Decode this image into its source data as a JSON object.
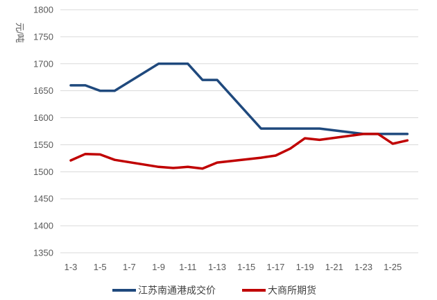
{
  "chart_data": {
    "type": "line",
    "title": "",
    "xlabel": "",
    "ylabel": "元/吨",
    "ylim": [
      1350,
      1800
    ],
    "yticks": [
      1350,
      1400,
      1450,
      1500,
      1550,
      1600,
      1650,
      1700,
      1750,
      1800
    ],
    "grid": true,
    "legend": "bottom",
    "x": [
      "1-3",
      "1-4",
      "1-5",
      "1-6",
      "1-7",
      "1-8",
      "1-9",
      "1-10",
      "1-11",
      "1-12",
      "1-13",
      "1-14",
      "1-15",
      "1-16",
      "1-17",
      "1-18",
      "1-19",
      "1-20",
      "1-21",
      "1-22",
      "1-23",
      "1-24",
      "1-25",
      "1-26"
    ],
    "x_tick_labels": [
      "1-3",
      "1-5",
      "1-7",
      "1-9",
      "1-11",
      "1-13",
      "1-15",
      "1-17",
      "1-19",
      "1-21",
      "1-23",
      "1-25"
    ],
    "series": [
      {
        "name": "江苏南通港成交价",
        "color": "#1f497d",
        "values": [
          1660,
          1660,
          1650,
          1650,
          null,
          null,
          1700,
          1700,
          1700,
          1670,
          1670,
          null,
          null,
          1580,
          1580,
          1580,
          1580,
          1580,
          null,
          null,
          1570,
          1570,
          1570,
          1570
        ]
      },
      {
        "name": "大商所期货",
        "color": "#c00000",
        "values": [
          1521,
          1533,
          1532,
          1522,
          null,
          null,
          1509,
          1507,
          1509,
          1506,
          1517,
          null,
          null,
          1526,
          1530,
          1543,
          1562,
          1559,
          null,
          null,
          1570,
          1570,
          1552,
          1558
        ]
      }
    ]
  }
}
